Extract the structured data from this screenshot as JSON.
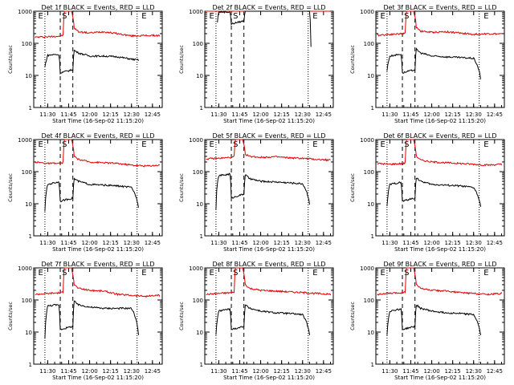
{
  "chart_data": [
    {
      "type": "line",
      "title": "Det 1f BLACK = Events, RED = LLD",
      "xlabel": "Start Time (16-Sep-02 11:15:20)",
      "ylabel": "Counts/sec",
      "ylim": [
        1,
        1000
      ],
      "y_scale": "log",
      "xlim": [
        "11:20",
        "12:52"
      ],
      "xticks": [
        "11:30",
        "11:45",
        "12:00",
        "12:15",
        "12:30",
        "12:45"
      ],
      "yticks": [
        "1",
        "10",
        "100",
        "1000"
      ],
      "markers": [
        {
          "time": "11:25",
          "label": "E"
        },
        {
          "time": "11:42",
          "label": "S"
        },
        {
          "time": "12:39",
          "label": "E"
        }
      ],
      "series": [
        {
          "name": "RED",
          "color": "#e00000",
          "x": [
            "11:21",
            "11:30",
            "11:40",
            "11:41",
            "11:42",
            "11:44",
            "11:47",
            "11:49",
            "11:52",
            "12:00",
            "12:10",
            "12:20",
            "12:30",
            "12:40",
            "12:50"
          ],
          "y": [
            155,
            160,
            170,
            180,
            1000,
            1000,
            1000,
            300,
            230,
            210,
            230,
            200,
            170,
            175,
            175
          ]
        },
        {
          "name": "BLACK",
          "color": "#000000",
          "x": [
            "11:28",
            "11:30",
            "11:35",
            "11:38",
            "11:39",
            "11:48",
            "11:49",
            "11:52",
            "12:00",
            "12:10",
            "12:20",
            "12:30",
            "12:35"
          ],
          "y": [
            18,
            42,
            45,
            44,
            12,
            15,
            60,
            50,
            40,
            40,
            38,
            32,
            30
          ]
        }
      ]
    },
    {
      "type": "line",
      "title": "Det 2f BLACK = Events, RED = LLD",
      "xlabel": "Start Time (16-Sep-02 11:15:20)",
      "ylabel": "Counts/sec",
      "ylim": [
        1,
        1000
      ],
      "y_scale": "log",
      "xlim": [
        "11:20",
        "12:52"
      ],
      "xticks": [
        "11:30",
        "11:45",
        "12:00",
        "12:15",
        "12:30",
        "12:45"
      ],
      "yticks": [
        "1",
        "10",
        "100",
        "1000"
      ],
      "markers": [
        {
          "time": "11:25",
          "label": "E"
        },
        {
          "time": "11:42",
          "label": "S"
        },
        {
          "time": "12:39",
          "label": "E"
        }
      ],
      "series": [
        {
          "name": "RED",
          "color": "#e00000",
          "x": [
            "11:21",
            "11:30",
            "11:40",
            "11:41",
            "11:42",
            "11:46",
            "11:49",
            "11:52",
            "12:00",
            "12:20",
            "12:40",
            "12:50"
          ],
          "y": [
            1000,
            1000,
            1000,
            1000,
            1000,
            1000,
            1000,
            1000,
            1000,
            1000,
            1000,
            1000
          ]
        },
        {
          "name": "BLACK",
          "color": "#000000",
          "x": [
            "11:29",
            "11:30",
            "11:38",
            "11:39",
            "11:48",
            "11:49",
            "12:00",
            "12:20",
            "12:35",
            "12:36"
          ],
          "y": [
            450,
            950,
            950,
            400,
            500,
            1000,
            1000,
            1000,
            1000,
            80
          ]
        }
      ]
    },
    {
      "type": "line",
      "title": "Det 3f BLACK = Events, RED = LLD",
      "xlabel": "Start Time (16-Sep-02 11:15:20)",
      "ylabel": "Counts/sec",
      "ylim": [
        1,
        1000
      ],
      "y_scale": "log",
      "xlim": [
        "11:20",
        "12:52"
      ],
      "xticks": [
        "11:30",
        "11:45",
        "12:00",
        "12:15",
        "12:30",
        "12:45"
      ],
      "yticks": [
        "1",
        "10",
        "100",
        "1000"
      ],
      "markers": [
        {
          "time": "11:25",
          "label": "E"
        },
        {
          "time": "11:42",
          "label": "S"
        },
        {
          "time": "12:39",
          "label": "E"
        }
      ],
      "series": [
        {
          "name": "RED",
          "color": "#e00000",
          "x": [
            "11:21",
            "11:30",
            "11:40",
            "11:41",
            "11:42",
            "11:44",
            "11:47",
            "11:49",
            "11:52",
            "12:00",
            "12:10",
            "12:20",
            "12:30",
            "12:40",
            "12:50"
          ],
          "y": [
            180,
            190,
            200,
            210,
            1000,
            1000,
            1000,
            320,
            240,
            220,
            230,
            210,
            190,
            200,
            195
          ]
        },
        {
          "name": "BLACK",
          "color": "#000000",
          "x": [
            "11:28",
            "11:30",
            "11:35",
            "11:38",
            "11:39",
            "11:48",
            "11:49",
            "11:52",
            "12:00",
            "12:10",
            "12:20",
            "12:30",
            "12:35"
          ],
          "y": [
            14,
            40,
            44,
            46,
            12,
            15,
            65,
            50,
            40,
            38,
            36,
            34,
            8
          ]
        }
      ]
    },
    {
      "type": "line",
      "title": "Det 4f BLACK = Events, RED = LLD",
      "xlabel": "Start Time (16-Sep-02 11:15:20)",
      "ylabel": "Counts/sec",
      "ylim": [
        1,
        1000
      ],
      "y_scale": "log",
      "xlim": [
        "11:20",
        "12:52"
      ],
      "xticks": [
        "11:30",
        "11:45",
        "12:00",
        "12:15",
        "12:30",
        "12:45"
      ],
      "yticks": [
        "1",
        "10",
        "100",
        "1000"
      ],
      "markers": [
        {
          "time": "11:25",
          "label": "E"
        },
        {
          "time": "11:42",
          "label": "S"
        },
        {
          "time": "12:39",
          "label": "E"
        }
      ],
      "series": [
        {
          "name": "RED",
          "color": "#e00000",
          "x": [
            "11:21",
            "11:30",
            "11:40",
            "11:41",
            "11:42",
            "11:44",
            "11:47",
            "11:49",
            "11:52",
            "12:00",
            "12:10",
            "12:20",
            "12:30",
            "12:40",
            "12:50"
          ],
          "y": [
            200,
            180,
            180,
            200,
            1000,
            1000,
            1000,
            300,
            240,
            200,
            190,
            180,
            160,
            150,
            160
          ]
        },
        {
          "name": "BLACK",
          "color": "#000000",
          "x": [
            "11:28",
            "11:30",
            "11:35",
            "11:38",
            "11:39",
            "11:48",
            "11:49",
            "11:52",
            "12:00",
            "12:10",
            "12:20",
            "12:30",
            "12:35"
          ],
          "y": [
            6,
            40,
            45,
            48,
            12,
            15,
            60,
            50,
            40,
            38,
            36,
            32,
            8
          ]
        }
      ]
    },
    {
      "type": "line",
      "title": "Det 5f BLACK = Events, RED = LLD",
      "xlabel": "Start Time (16-Sep-02 11:15:20)",
      "ylabel": "Counts/sec",
      "ylim": [
        1,
        1000
      ],
      "y_scale": "log",
      "xlim": [
        "11:20",
        "12:52"
      ],
      "xticks": [
        "11:30",
        "11:45",
        "12:00",
        "12:15",
        "12:30",
        "12:45"
      ],
      "yticks": [
        "1",
        "10",
        "100",
        "1000"
      ],
      "markers": [
        {
          "time": "11:25",
          "label": "E"
        },
        {
          "time": "11:42",
          "label": "S"
        },
        {
          "time": "12:39",
          "label": "E"
        }
      ],
      "series": [
        {
          "name": "RED",
          "color": "#e00000",
          "x": [
            "11:21",
            "11:30",
            "11:40",
            "11:41",
            "11:42",
            "11:44",
            "11:47",
            "11:49",
            "11:52",
            "12:00",
            "12:10",
            "12:20",
            "12:30",
            "12:40",
            "12:50"
          ],
          "y": [
            250,
            260,
            280,
            300,
            1000,
            1000,
            1000,
            350,
            300,
            280,
            290,
            270,
            260,
            240,
            230
          ]
        },
        {
          "name": "BLACK",
          "color": "#000000",
          "x": [
            "11:28",
            "11:30",
            "11:35",
            "11:38",
            "11:39",
            "11:48",
            "11:49",
            "11:52",
            "12:00",
            "12:10",
            "12:20",
            "12:30",
            "12:35"
          ],
          "y": [
            7,
            75,
            80,
            85,
            15,
            20,
            80,
            60,
            50,
            48,
            45,
            42,
            10
          ]
        }
      ]
    },
    {
      "type": "line",
      "title": "Det 6f BLACK = Events, RED = LLD",
      "xlabel": "Start Time (16-Sep-02 11:15:20)",
      "ylabel": "Counts/sec",
      "ylim": [
        1,
        1000
      ],
      "y_scale": "log",
      "xlim": [
        "11:20",
        "12:52"
      ],
      "xticks": [
        "11:30",
        "11:45",
        "12:00",
        "12:15",
        "12:30",
        "12:45"
      ],
      "yticks": [
        "1",
        "10",
        "100",
        "1000"
      ],
      "markers": [
        {
          "time": "11:25",
          "label": "E"
        },
        {
          "time": "11:42",
          "label": "S"
        },
        {
          "time": "12:39",
          "label": "E"
        }
      ],
      "series": [
        {
          "name": "RED",
          "color": "#e00000",
          "x": [
            "11:21",
            "11:30",
            "11:40",
            "11:41",
            "11:42",
            "11:44",
            "11:47",
            "11:49",
            "11:52",
            "12:00",
            "12:10",
            "12:20",
            "12:30",
            "12:40",
            "12:50"
          ],
          "y": [
            180,
            170,
            180,
            190,
            1000,
            1000,
            1000,
            300,
            230,
            200,
            190,
            180,
            170,
            160,
            170
          ]
        },
        {
          "name": "BLACK",
          "color": "#000000",
          "x": [
            "11:28",
            "11:30",
            "11:35",
            "11:38",
            "11:39",
            "11:48",
            "11:49",
            "11:52",
            "12:00",
            "12:10",
            "12:20",
            "12:30",
            "12:35"
          ],
          "y": [
            8,
            40,
            44,
            46,
            12,
            15,
            65,
            50,
            40,
            38,
            36,
            32,
            8
          ]
        }
      ]
    },
    {
      "type": "line",
      "title": "Det 7f BLACK = Events, RED = LLD",
      "xlabel": "Start Time (16-Sep-02 11:15:20)",
      "ylabel": "Counts/sec",
      "ylim": [
        1,
        1000
      ],
      "y_scale": "log",
      "xlim": [
        "11:20",
        "12:52"
      ],
      "xticks": [
        "11:30",
        "11:45",
        "12:00",
        "12:15",
        "12:30",
        "12:45"
      ],
      "yticks": [
        "1",
        "10",
        "100",
        "1000"
      ],
      "markers": [
        {
          "time": "11:25",
          "label": "E"
        },
        {
          "time": "11:42",
          "label": "S"
        },
        {
          "time": "12:39",
          "label": "E"
        }
      ],
      "series": [
        {
          "name": "RED",
          "color": "#e00000",
          "x": [
            "11:21",
            "11:30",
            "11:40",
            "11:41",
            "11:42",
            "11:44",
            "11:47",
            "11:49",
            "11:52",
            "12:00",
            "12:10",
            "12:20",
            "12:30",
            "12:40",
            "12:50"
          ],
          "y": [
            150,
            160,
            170,
            180,
            1000,
            1000,
            1000,
            300,
            230,
            200,
            190,
            150,
            140,
            130,
            140
          ]
        },
        {
          "name": "BLACK",
          "color": "#000000",
          "x": [
            "11:28",
            "11:30",
            "11:35",
            "11:38",
            "11:39",
            "11:48",
            "11:49",
            "11:52",
            "12:00",
            "12:10",
            "12:20",
            "12:30",
            "12:35"
          ],
          "y": [
            6,
            65,
            70,
            68,
            12,
            15,
            90,
            70,
            60,
            55,
            55,
            55,
            8
          ]
        }
      ]
    },
    {
      "type": "line",
      "title": "Det 8f BLACK = Events, RED = LLD",
      "xlabel": "Start Time (16-Sep-02 11:15:20)",
      "ylabel": "Counts/sec",
      "ylim": [
        1,
        1000
      ],
      "y_scale": "log",
      "xlim": [
        "11:20",
        "12:52"
      ],
      "xticks": [
        "11:30",
        "11:45",
        "12:00",
        "12:15",
        "12:30",
        "12:45"
      ],
      "yticks": [
        "1",
        "10",
        "100",
        "1000"
      ],
      "markers": [
        {
          "time": "11:25",
          "label": "E"
        },
        {
          "time": "11:42",
          "label": "S"
        },
        {
          "time": "12:39",
          "label": "E"
        }
      ],
      "series": [
        {
          "name": "RED",
          "color": "#e00000",
          "x": [
            "11:21",
            "11:30",
            "11:40",
            "11:41",
            "11:42",
            "11:44",
            "11:47",
            "11:49",
            "11:52",
            "12:00",
            "12:10",
            "12:20",
            "12:30",
            "12:40",
            "12:50"
          ],
          "y": [
            150,
            160,
            170,
            180,
            1000,
            1000,
            1000,
            300,
            230,
            200,
            190,
            180,
            170,
            160,
            150
          ]
        },
        {
          "name": "BLACK",
          "color": "#000000",
          "x": [
            "11:28",
            "11:30",
            "11:35",
            "11:38",
            "11:39",
            "11:48",
            "11:49",
            "11:52",
            "12:00",
            "12:10",
            "12:20",
            "12:30",
            "12:35"
          ],
          "y": [
            8,
            45,
            50,
            52,
            12,
            15,
            70,
            55,
            45,
            40,
            38,
            35,
            8
          ]
        }
      ]
    },
    {
      "type": "line",
      "title": "Det 9f BLACK = Events, RED = LLD",
      "xlabel": "Start Time (16-Sep-02 11:15:20)",
      "ylabel": "Counts/sec",
      "ylim": [
        1,
        1000
      ],
      "y_scale": "log",
      "xlim": [
        "11:20",
        "12:52"
      ],
      "xticks": [
        "11:30",
        "11:45",
        "12:00",
        "12:15",
        "12:30",
        "12:45"
      ],
      "yticks": [
        "1",
        "10",
        "100",
        "1000"
      ],
      "markers": [
        {
          "time": "11:25",
          "label": "E"
        },
        {
          "time": "11:42",
          "label": "S"
        },
        {
          "time": "12:39",
          "label": "E"
        }
      ],
      "series": [
        {
          "name": "RED",
          "color": "#e00000",
          "x": [
            "11:21",
            "11:30",
            "11:40",
            "11:41",
            "11:42",
            "11:44",
            "11:47",
            "11:49",
            "11:52",
            "12:00",
            "12:10",
            "12:20",
            "12:30",
            "12:40",
            "12:50"
          ],
          "y": [
            150,
            160,
            170,
            180,
            1000,
            1000,
            1000,
            300,
            230,
            200,
            190,
            170,
            160,
            150,
            160
          ]
        },
        {
          "name": "BLACK",
          "color": "#000000",
          "x": [
            "11:28",
            "11:30",
            "11:35",
            "11:38",
            "11:39",
            "11:48",
            "11:49",
            "11:52",
            "12:00",
            "12:10",
            "12:20",
            "12:30",
            "12:35"
          ],
          "y": [
            8,
            45,
            50,
            52,
            12,
            15,
            70,
            55,
            45,
            40,
            38,
            35,
            8
          ]
        }
      ]
    }
  ]
}
